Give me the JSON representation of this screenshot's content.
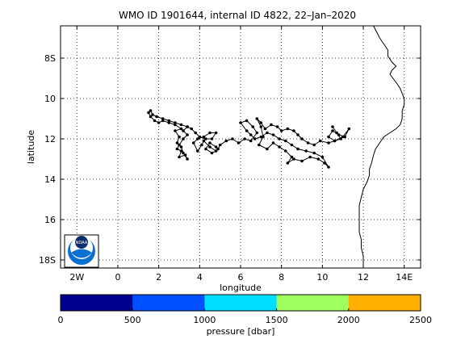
{
  "chart_data": {
    "type": "scatter",
    "title": "WMO ID 1901644, internal ID 4822, 22–Jan–2020",
    "xlabel": "longitude",
    "ylabel": "latitude",
    "xlim": [
      -2.8,
      14.8
    ],
    "ylim": [
      18.4,
      6.4
    ],
    "y_axis_direction": "south-down",
    "grid": true,
    "x_ticks": [
      {
        "v": -2,
        "label": "2W"
      },
      {
        "v": 0,
        "label": "0"
      },
      {
        "v": 2,
        "label": "2"
      },
      {
        "v": 4,
        "label": "4"
      },
      {
        "v": 6,
        "label": "6"
      },
      {
        "v": 8,
        "label": "8"
      },
      {
        "v": 10,
        "label": "10"
      },
      {
        "v": 12,
        "label": "12"
      },
      {
        "v": 14,
        "label": "14E"
      }
    ],
    "y_ticks": [
      {
        "v": 8,
        "label": "8S"
      },
      {
        "v": 10,
        "label": "10"
      },
      {
        "v": 12,
        "label": "12"
      },
      {
        "v": 14,
        "label": "14"
      },
      {
        "v": 16,
        "label": "16"
      },
      {
        "v": 18,
        "label": "18S"
      }
    ],
    "series": [
      {
        "points": [
          [
            10.5,
            11.4
          ],
          [
            10.7,
            11.7
          ],
          [
            10.9,
            12.0
          ],
          [
            10.6,
            12.1
          ],
          [
            10.3,
            11.9
          ],
          [
            10.5,
            11.6
          ],
          [
            10.8,
            11.8
          ],
          [
            11.1,
            11.9
          ],
          [
            11.3,
            11.5
          ],
          [
            11.0,
            11.9
          ],
          [
            10.6,
            12.1
          ],
          [
            10.3,
            12.2
          ],
          [
            9.9,
            12.1
          ],
          [
            9.6,
            12.3
          ],
          [
            9.3,
            12.2
          ],
          [
            9.0,
            12.0
          ],
          [
            8.8,
            11.8
          ],
          [
            8.6,
            11.6
          ],
          [
            8.3,
            11.5
          ],
          [
            8.0,
            11.6
          ],
          [
            7.8,
            11.4
          ],
          [
            7.5,
            11.3
          ],
          [
            7.2,
            11.5
          ],
          [
            7.0,
            11.2
          ],
          [
            6.8,
            11.0
          ],
          [
            7.0,
            11.4
          ],
          [
            7.1,
            11.9
          ],
          [
            6.9,
            12.3
          ],
          [
            7.3,
            12.5
          ],
          [
            7.6,
            12.2
          ],
          [
            7.9,
            12.4
          ],
          [
            8.2,
            12.6
          ],
          [
            8.5,
            12.9
          ],
          [
            8.3,
            13.2
          ],
          [
            8.6,
            13.0
          ],
          [
            9.0,
            13.1
          ],
          [
            9.4,
            12.9
          ],
          [
            9.8,
            13.0
          ],
          [
            10.1,
            13.2
          ],
          [
            10.3,
            13.4
          ],
          [
            10.0,
            12.9
          ],
          [
            9.6,
            12.7
          ],
          [
            9.2,
            12.6
          ],
          [
            8.8,
            12.5
          ],
          [
            8.5,
            12.3
          ],
          [
            8.2,
            12.1
          ],
          [
            7.9,
            12.0
          ],
          [
            7.6,
            11.8
          ],
          [
            7.3,
            11.7
          ],
          [
            7.0,
            11.9
          ],
          [
            6.7,
            12.0
          ],
          [
            6.5,
            11.8
          ],
          [
            6.3,
            11.6
          ],
          [
            6.0,
            11.2
          ],
          [
            6.3,
            11.1
          ],
          [
            6.6,
            11.4
          ],
          [
            6.8,
            11.7
          ],
          [
            6.5,
            12.1
          ],
          [
            6.2,
            12.0
          ],
          [
            5.9,
            12.2
          ],
          [
            5.6,
            12.0
          ],
          [
            5.3,
            12.1
          ],
          [
            5.0,
            12.3
          ],
          [
            4.9,
            12.5
          ],
          [
            4.8,
            12.4
          ],
          [
            4.5,
            12.2
          ],
          [
            4.3,
            12.5
          ],
          [
            4.6,
            12.7
          ],
          [
            4.8,
            12.6
          ],
          [
            4.5,
            12.4
          ],
          [
            4.2,
            12.1
          ],
          [
            4.1,
            12.3
          ],
          [
            3.9,
            12.6
          ],
          [
            3.7,
            12.2
          ],
          [
            3.9,
            12.0
          ],
          [
            4.2,
            11.9
          ],
          [
            4.5,
            11.7
          ],
          [
            4.8,
            11.7
          ],
          [
            4.6,
            12.0
          ],
          [
            4.3,
            12.0
          ],
          [
            4.0,
            11.9
          ],
          [
            3.8,
            11.7
          ],
          [
            3.6,
            11.5
          ],
          [
            3.4,
            11.4
          ],
          [
            3.2,
            11.6
          ],
          [
            3.4,
            11.8
          ],
          [
            3.2,
            12.0
          ],
          [
            3.0,
            12.3
          ],
          [
            2.9,
            12.5
          ],
          [
            3.1,
            12.6
          ],
          [
            3.0,
            12.9
          ],
          [
            3.3,
            12.8
          ],
          [
            3.4,
            13.0
          ],
          [
            3.2,
            12.7
          ],
          [
            3.1,
            12.4
          ],
          [
            2.9,
            12.2
          ],
          [
            3.0,
            11.9
          ],
          [
            2.8,
            11.6
          ],
          [
            3.1,
            11.5
          ],
          [
            2.8,
            11.3
          ],
          [
            2.5,
            11.2
          ],
          [
            2.2,
            11.1
          ],
          [
            2.0,
            11.2
          ],
          [
            1.8,
            11.1
          ],
          [
            1.6,
            10.9
          ],
          [
            1.5,
            10.7
          ],
          [
            1.6,
            10.6
          ],
          [
            1.7,
            10.8
          ],
          [
            1.9,
            10.9
          ],
          [
            2.2,
            11.0
          ],
          [
            2.5,
            11.1
          ],
          [
            2.8,
            11.2
          ],
          [
            3.1,
            11.3
          ],
          [
            3.4,
            11.4
          ]
        ]
      }
    ],
    "coastline": [
      [
        12.5,
        6.4
      ],
      [
        12.6,
        6.6
      ],
      [
        12.8,
        7.0
      ],
      [
        13.0,
        7.3
      ],
      [
        13.2,
        7.6
      ],
      [
        13.2,
        7.9
      ],
      [
        13.4,
        8.2
      ],
      [
        13.6,
        8.4
      ],
      [
        13.4,
        8.6
      ],
      [
        13.3,
        8.8
      ],
      [
        13.6,
        9.2
      ],
      [
        13.8,
        9.5
      ],
      [
        14.0,
        10.0
      ],
      [
        14.0,
        10.3
      ],
      [
        13.9,
        10.6
      ],
      [
        13.9,
        11.0
      ],
      [
        13.8,
        11.3
      ],
      [
        13.6,
        11.5
      ],
      [
        13.3,
        11.7
      ],
      [
        13.0,
        11.9
      ],
      [
        12.8,
        12.2
      ],
      [
        12.6,
        12.5
      ],
      [
        12.5,
        12.8
      ],
      [
        12.4,
        13.2
      ],
      [
        12.3,
        13.5
      ],
      [
        12.3,
        13.8
      ],
      [
        12.2,
        14.1
      ],
      [
        12.0,
        14.5
      ],
      [
        11.9,
        14.9
      ],
      [
        11.8,
        15.3
      ],
      [
        11.8,
        15.8
      ],
      [
        11.8,
        16.2
      ],
      [
        11.8,
        16.6
      ],
      [
        11.9,
        17.0
      ],
      [
        11.9,
        17.4
      ],
      [
        12.0,
        17.8
      ],
      [
        12.0,
        18.1
      ],
      [
        12.0,
        18.4
      ]
    ]
  },
  "colorbar": {
    "label": "pressure [dbar]",
    "ticks": [
      "0",
      "500",
      "1000",
      "1500",
      "2000",
      "2500"
    ],
    "colors": [
      "#00008f",
      "#0050ff",
      "#00dfff",
      "#9fff5f",
      "#ffaf00"
    ]
  },
  "logo": {
    "text": "NOAA"
  }
}
